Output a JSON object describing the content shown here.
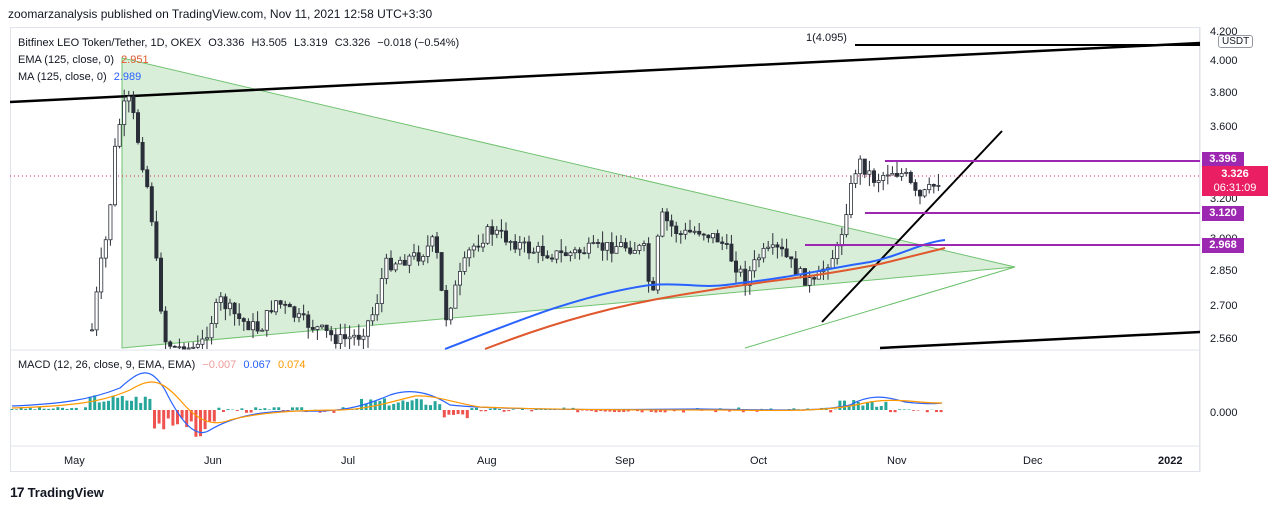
{
  "header": {
    "published": "zoomarzanalysis published on TradingView.com, Nov 11, 2021 12:58 UTC+3:30"
  },
  "legend": {
    "symbol": "Bitfinex LEO Token/Tether, 1D, OKEX",
    "open": "O3.336",
    "high": "H3.505",
    "low": "L3.319",
    "close": "C3.326",
    "change": "−0.018 (−0.54%)",
    "ema_label": "EMA (125, close, 0)",
    "ema_value": "2.951",
    "ma_label": "MA (125, close, 0)",
    "ma_value": "2.989",
    "macd_label": "MACD (12, 26, close, 9, EMA, EMA)",
    "macd_hist": "−0.007",
    "macd_line": "0.067",
    "macd_signal": "0.074"
  },
  "price_tags": {
    "currency": "USDT",
    "resistance_top": "3.396",
    "current": "3.326",
    "countdown": "06:31:09",
    "support_mid": "3.120",
    "support_low": "2.968"
  },
  "annotation": "1(4.095)",
  "footer": {
    "brand": "TradingView"
  },
  "colors": {
    "up": "#26a69a",
    "down": "#ef5350",
    "candle": "#2a2e39",
    "ema": "#e0582e",
    "ma": "#2962ff",
    "triangle": "#c8e6c9",
    "level": "#9c27b0",
    "current": "#e91e63",
    "macd": "#2962ff",
    "signal": "#ff9800",
    "hist_up": "#26a69a",
    "hist_down": "#ef5350"
  },
  "chart_data": [
    {
      "type": "candlestick",
      "title": "Bitfinex LEO Token/Tether, 1D, OKEX",
      "x_ticks": [
        "May",
        "Jun",
        "Jul",
        "Aug",
        "Sep",
        "Oct",
        "Nov",
        "Dec",
        "2022"
      ],
      "y_ticks": [
        "2.560",
        "2.700",
        "2.850",
        "3.000",
        "3.200",
        "3.400",
        "3.600",
        "3.800",
        "4.000",
        "4.200"
      ],
      "levels": [
        3.396,
        3.12,
        2.968
      ],
      "series": [
        {
          "name": "EMA (125, close, 0)",
          "last": 2.951
        },
        {
          "name": "MA (125, close, 0)",
          "last": 2.989
        }
      ],
      "last": {
        "open": 3.336,
        "high": 3.505,
        "low": 3.319,
        "close": 3.326
      }
    },
    {
      "type": "line",
      "title": "MACD (12, 26, close, 9, EMA, EMA)",
      "y_ticks": [
        "0.000"
      ],
      "series": [
        {
          "name": "Histogram",
          "last": -0.007
        },
        {
          "name": "MACD",
          "last": 0.067
        },
        {
          "name": "Signal",
          "last": 0.074
        }
      ]
    }
  ]
}
